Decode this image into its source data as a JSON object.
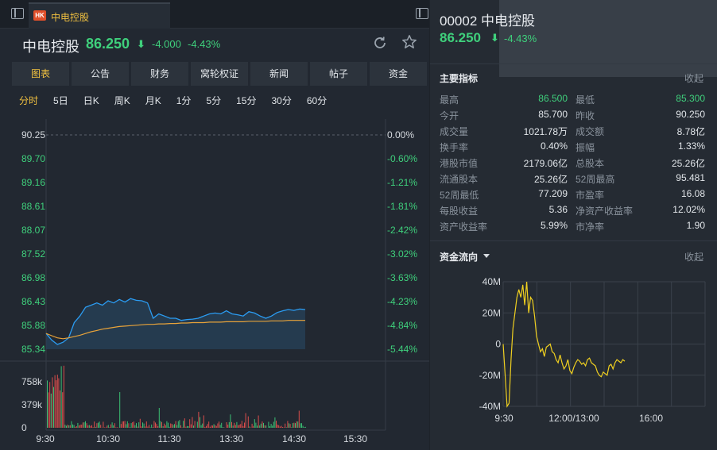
{
  "tab": {
    "badge": "HK",
    "name": "中电控股"
  },
  "quote": {
    "name": "中电控股",
    "price": "86.250",
    "arrow": "⬇",
    "change": "-4.000",
    "pct": "-4.43%"
  },
  "icons": {
    "refresh": "refresh-icon",
    "star": "star-icon",
    "toggle": "panel-toggle-icon"
  },
  "main_tabs": [
    "图表",
    "公告",
    "财务",
    "窝轮权证",
    "新闻",
    "帖子",
    "资金"
  ],
  "period_tabs": [
    "分时",
    "5日",
    "日K",
    "周K",
    "月K",
    "1分",
    "5分",
    "15分",
    "30分",
    "60分"
  ],
  "colors": {
    "up": "#f0524f",
    "down": "#3fd07c",
    "accent": "#f0c040",
    "price_line": "#2b9cf2",
    "avg_line": "#e8a33a"
  },
  "chart_data": [
    {
      "type": "line",
      "name": "intraday",
      "y_ticks": [
        "90.25",
        "89.70",
        "89.16",
        "88.61",
        "88.07",
        "87.52",
        "86.98",
        "86.43",
        "85.88",
        "85.34"
      ],
      "pct_ticks": [
        "0.00%",
        "-0.60%",
        "-1.21%",
        "-1.81%",
        "-2.42%",
        "-3.02%",
        "-3.63%",
        "-4.23%",
        "-4.84%",
        "-5.44%"
      ],
      "ylim": [
        85.34,
        90.25
      ],
      "prev_close": 90.25,
      "x_ticks": [
        "9:30",
        "10:30",
        "11:30",
        "13:30",
        "14:30",
        "15:30"
      ],
      "price": [
        85.7,
        85.55,
        85.45,
        85.5,
        85.6,
        85.95,
        86.1,
        86.3,
        86.35,
        86.4,
        86.35,
        86.45,
        86.4,
        86.48,
        86.42,
        86.5,
        86.46,
        86.45,
        86.4,
        86.05,
        86.15,
        86.1,
        86.05,
        86.05,
        86.0,
        86.02,
        86.03,
        86.05,
        86.1,
        86.15,
        86.17,
        86.15,
        86.22,
        86.15,
        86.13,
        86.1,
        86.2,
        86.17,
        86.1,
        86.05,
        86.1,
        86.18,
        86.22,
        86.25,
        86.23,
        86.26,
        86.25
      ],
      "avg": [
        85.7,
        85.65,
        85.6,
        85.58,
        85.6,
        85.63,
        85.66,
        85.7,
        85.74,
        85.77,
        85.8,
        85.82,
        85.84,
        85.86,
        85.87,
        85.88,
        85.89,
        85.9,
        85.91,
        85.91,
        85.92,
        85.92,
        85.93,
        85.93,
        85.94,
        85.94,
        85.95,
        85.95,
        85.95,
        85.96,
        85.96,
        85.96,
        85.97,
        85.97,
        85.97,
        85.97,
        85.98,
        85.98,
        85.98,
        85.98,
        85.99,
        85.99,
        85.99,
        86.0,
        86.0,
        86.0,
        86.0
      ]
    },
    {
      "type": "bar",
      "name": "volume",
      "y_ticks": [
        "758k",
        "379k",
        "0"
      ],
      "ylim": [
        0,
        900
      ],
      "unit": "k"
    },
    {
      "type": "line",
      "name": "capital-flow",
      "y_ticks": [
        "40M",
        "20M",
        "0",
        "-20M",
        "-40M"
      ],
      "ylim": [
        -40,
        40
      ],
      "x_ticks": [
        "9:30",
        "12:00/13:00",
        "16:00"
      ],
      "values": [
        0,
        -20,
        -40,
        -38,
        -10,
        10,
        20,
        30,
        35,
        30,
        38,
        25,
        40,
        20,
        30,
        28,
        18,
        5,
        0,
        -5,
        -3,
        -8,
        -2,
        -1,
        0,
        -5,
        -6,
        -10,
        -12,
        -7,
        -12,
        -16,
        -14,
        -10,
        -17,
        -19,
        -15,
        -12,
        -10,
        -11,
        -13,
        -12,
        -14,
        -10,
        -9,
        -12,
        -13,
        -14,
        -18,
        -20,
        -21,
        -18,
        -19,
        -20,
        -14,
        -13,
        -16,
        -12,
        -10,
        -11,
        -12,
        -10,
        -11
      ]
    }
  ],
  "right": {
    "code": "00002 中电控股",
    "price": "86.250",
    "arrow": "⬇",
    "pct": "-4.43%",
    "metrics_title": "主要指标",
    "collapse": "收起",
    "metrics": [
      {
        "l1": "最高",
        "v1": "86.500",
        "c1": "green",
        "l2": "最低",
        "v2": "85.300",
        "c2": "green"
      },
      {
        "l1": "今开",
        "v1": "85.700",
        "c1": "",
        "l2": "昨收",
        "v2": "90.250",
        "c2": ""
      },
      {
        "l1": "成交量",
        "v1": "1021.78万",
        "c1": "",
        "l2": "成交额",
        "v2": "8.78亿",
        "c2": ""
      },
      {
        "l1": "换手率",
        "v1": "0.40%",
        "c1": "",
        "l2": "振幅",
        "v2": "1.33%",
        "c2": ""
      },
      {
        "l1": "港股市值",
        "v1": "2179.06亿",
        "c1": "",
        "l2": "总股本",
        "v2": "25.26亿",
        "c2": ""
      },
      {
        "l1": "流通股本",
        "v1": "25.26亿",
        "c1": "",
        "l2": "52周最高",
        "v2": "95.481",
        "c2": ""
      },
      {
        "l1": "52周最低",
        "v1": "77.209",
        "c1": "",
        "l2": "市盈率",
        "v2": "16.08",
        "c2": ""
      },
      {
        "l1": "每股收益",
        "v1": "5.36",
        "c1": "",
        "l2": "净资产收益率",
        "v2": "12.02%",
        "c2": ""
      },
      {
        "l1": "资产收益率",
        "v1": "5.99%",
        "c1": "",
        "l2": "市净率",
        "v2": "1.90",
        "c2": ""
      }
    ],
    "flow_title": "资金流向",
    "flow_collapse": "收起"
  }
}
